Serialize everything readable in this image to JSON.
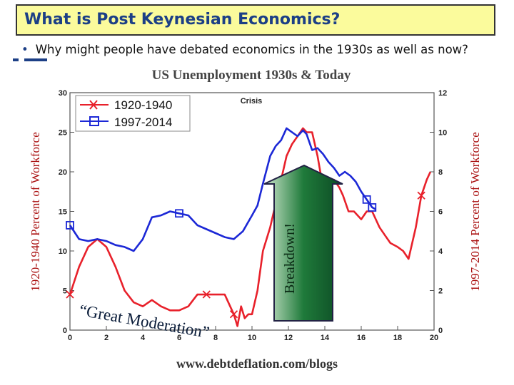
{
  "slide": {
    "title": "What is Post Keynesian Economics?",
    "bullet": "Why might people have debated economics in the 1930s as well as now?"
  },
  "chart_data": {
    "type": "line",
    "title": "US Unemployment 1930s & Today",
    "source": "www.debtdeflation.com/blogs",
    "annotations": {
      "crisis": "Crisis",
      "breakdown": "Breakdown!",
      "moderation": "“Great Moderation”"
    },
    "xlim": [
      0,
      20
    ],
    "x_ticks": [
      0,
      2,
      4,
      6,
      8,
      10,
      12,
      14,
      16,
      18,
      20
    ],
    "left_axis": {
      "label": "1920-1940 Percent of Workforce",
      "lim": [
        0,
        30
      ],
      "ticks": [
        0,
        5,
        10,
        15,
        20,
        25,
        30
      ]
    },
    "right_axis": {
      "label": "1997-2014 Percent of Workforce",
      "lim": [
        0,
        12
      ],
      "ticks": [
        0,
        2,
        4,
        6,
        8,
        10,
        12
      ]
    },
    "colors": {
      "red": "#e8212b",
      "blue": "#1c28d6"
    },
    "series": [
      {
        "name": "1920-1940",
        "axis": "left",
        "color": "#e8212b",
        "marker": "x",
        "x": [
          0,
          0.5,
          1,
          1.5,
          2,
          2.5,
          3,
          3.5,
          4,
          4.5,
          5,
          5.5,
          6,
          6.5,
          7,
          7.5,
          8,
          8.5,
          9,
          9.2,
          9.4,
          9.6,
          9.8,
          10,
          10.3,
          10.6,
          11,
          11.3,
          11.6,
          11.9,
          12.2,
          12.5,
          12.8,
          13,
          13.3,
          13.6,
          13.9,
          14.2,
          14.5,
          14.8,
          15,
          15.3,
          15.6,
          16,
          16.3,
          16.6,
          17,
          17.3,
          17.6,
          18,
          18.3,
          18.6,
          19,
          19.3,
          19.6,
          19.8
        ],
        "values": [
          4.5,
          8,
          10.5,
          11.5,
          10.5,
          8,
          5,
          3.5,
          3,
          3.8,
          3,
          2.5,
          2.5,
          3,
          4.5,
          4.5,
          4.5,
          4.5,
          2,
          0.5,
          3,
          1.5,
          2,
          2,
          5,
          10,
          13,
          16,
          19,
          22,
          23.5,
          24.5,
          25.5,
          25,
          25,
          22,
          18,
          17,
          19,
          18,
          17,
          15,
          15,
          14,
          15,
          15,
          13,
          12,
          11,
          10.5,
          10,
          9,
          13,
          17,
          19,
          20
        ]
      },
      {
        "name": "1997-2014",
        "axis": "right",
        "color": "#1c28d6",
        "marker": "square",
        "x": [
          0,
          0.5,
          1,
          1.5,
          2,
          2.5,
          3,
          3.5,
          4,
          4.5,
          5,
          5.5,
          6,
          6.5,
          7,
          7.5,
          8,
          8.5,
          9,
          9.5,
          10,
          10.3,
          10.6,
          11,
          11.3,
          11.6,
          11.9,
          12.2,
          12.5,
          12.8,
          13,
          13.3,
          13.6,
          13.9,
          14.2,
          14.5,
          14.8,
          15.1,
          15.4,
          15.7,
          16,
          16.3,
          16.6,
          16.8
        ],
        "values": [
          5.3,
          4.6,
          4.5,
          4.6,
          4.5,
          4.3,
          4.2,
          4.0,
          4.6,
          5.7,
          5.8,
          6.0,
          5.9,
          5.8,
          5.3,
          5.1,
          4.9,
          4.7,
          4.6,
          5.0,
          5.8,
          6.3,
          7.4,
          8.8,
          9.3,
          9.6,
          10.2,
          10.0,
          9.8,
          10.1,
          9.9,
          9.1,
          9.2,
          8.9,
          8.5,
          8.2,
          7.8,
          8.0,
          7.8,
          7.5,
          7.0,
          6.6,
          6.2,
          6.1
        ]
      }
    ]
  }
}
